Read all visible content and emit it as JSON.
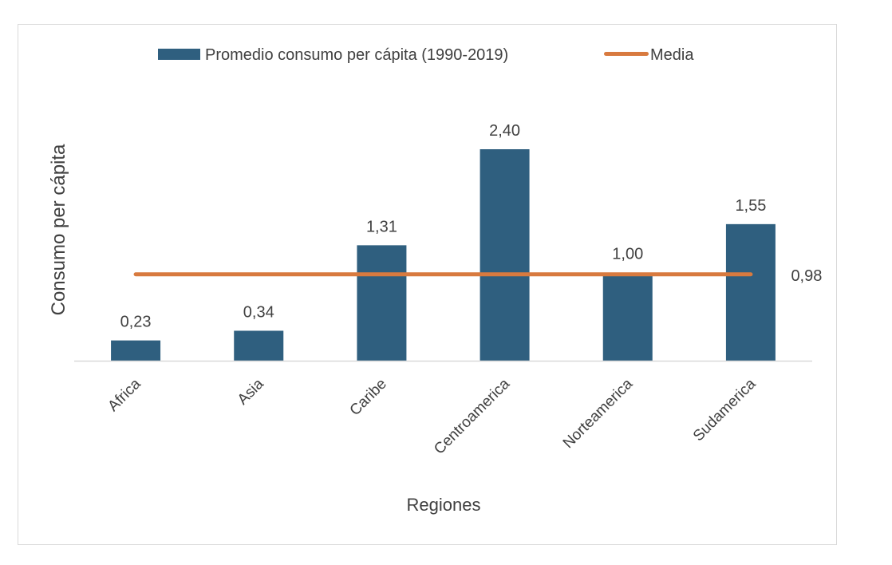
{
  "chart_data": {
    "type": "bar",
    "title": "",
    "xlabel": "Regiones",
    "ylabel": "Consumo per cápita",
    "ylim": [
      0,
      2.4
    ],
    "grid": false,
    "legend_position": "top",
    "categories": [
      "Africa",
      "Asia",
      "Caribe",
      "Centroamerica",
      "Norteamerica",
      "Sudamerica"
    ],
    "series": [
      {
        "name": "Promedio consumo per cápita (1990-2019)",
        "type": "bar",
        "values": [
          0.23,
          0.34,
          1.31,
          2.4,
          1.0,
          1.55
        ],
        "labels": [
          "0,23",
          "0,34",
          "1,31",
          "2,40",
          "1,00",
          "1,55"
        ],
        "color": "#2F5F7F"
      },
      {
        "name": "Media",
        "type": "line",
        "value": 0.98,
        "label": "0,98",
        "color": "#D87A3F"
      }
    ]
  }
}
